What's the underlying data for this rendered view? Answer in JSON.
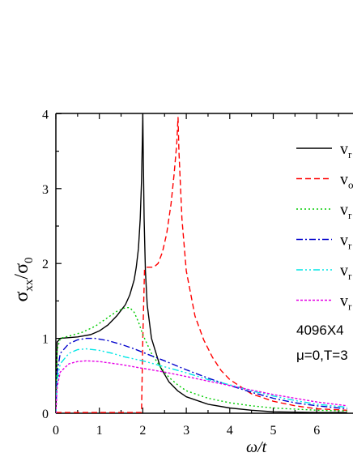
{
  "chart_data": {
    "type": "line",
    "xlabel": "ω/t",
    "ylabel": "σxx/σ0",
    "xlim": [
      0,
      6.7
    ],
    "ylim": [
      0,
      4
    ],
    "x_ticks": [
      "0",
      "1",
      "2",
      "3",
      "4",
      "5",
      "6"
    ],
    "y_ticks": [
      "0",
      "1",
      "2",
      "3",
      "4"
    ],
    "annotations": [
      "4096X4",
      "μ=0,T=3"
    ],
    "series": [
      {
        "name": "v_r",
        "color": "#000000",
        "dash": "solid",
        "points": [
          [
            0,
            0
          ],
          [
            0.03,
            0.95
          ],
          [
            0.1,
            1.0
          ],
          [
            0.5,
            1.02
          ],
          [
            0.8,
            1.05
          ],
          [
            1.0,
            1.1
          ],
          [
            1.2,
            1.18
          ],
          [
            1.4,
            1.3
          ],
          [
            1.6,
            1.45
          ],
          [
            1.7,
            1.58
          ],
          [
            1.8,
            1.78
          ],
          [
            1.85,
            1.95
          ],
          [
            1.9,
            2.2
          ],
          [
            1.94,
            2.6
          ],
          [
            1.97,
            3.1
          ],
          [
            1.99,
            3.7
          ],
          [
            2.0,
            4.0
          ],
          [
            2.01,
            3.5
          ],
          [
            2.03,
            2.6
          ],
          [
            2.06,
            1.9
          ],
          [
            2.1,
            1.45
          ],
          [
            2.2,
            1.0
          ],
          [
            2.4,
            0.62
          ],
          [
            2.6,
            0.42
          ],
          [
            2.8,
            0.3
          ],
          [
            3.0,
            0.22
          ],
          [
            3.5,
            0.12
          ],
          [
            4.0,
            0.07
          ],
          [
            4.5,
            0.04
          ],
          [
            5.0,
            0.02
          ],
          [
            6.0,
            0.01
          ],
          [
            6.7,
            0.01
          ]
        ]
      },
      {
        "name": "v_o",
        "color": "#ff0000",
        "dash": "7,4",
        "points": [
          [
            0,
            0.01
          ],
          [
            1.5,
            0.01
          ],
          [
            1.97,
            0.01
          ],
          [
            2.0,
            1.0
          ],
          [
            2.04,
            1.92
          ],
          [
            2.1,
            1.95
          ],
          [
            2.25,
            1.95
          ],
          [
            2.35,
            2.0
          ],
          [
            2.45,
            2.15
          ],
          [
            2.55,
            2.4
          ],
          [
            2.65,
            2.8
          ],
          [
            2.72,
            3.2
          ],
          [
            2.78,
            3.6
          ],
          [
            2.81,
            3.95
          ],
          [
            2.83,
            3.5
          ],
          [
            2.9,
            2.6
          ],
          [
            3.0,
            1.9
          ],
          [
            3.2,
            1.3
          ],
          [
            3.4,
            0.98
          ],
          [
            3.6,
            0.75
          ],
          [
            3.8,
            0.57
          ],
          [
            4.0,
            0.45
          ],
          [
            4.5,
            0.26
          ],
          [
            5.0,
            0.16
          ],
          [
            5.5,
            0.1
          ],
          [
            6.0,
            0.06
          ],
          [
            6.7,
            0.04
          ]
        ]
      },
      {
        "name": "v_r",
        "color": "#00cc00",
        "dash": "2,3",
        "points": [
          [
            0,
            0
          ],
          [
            0.03,
            0.85
          ],
          [
            0.1,
            1.0
          ],
          [
            0.3,
            1.03
          ],
          [
            0.6,
            1.08
          ],
          [
            0.9,
            1.16
          ],
          [
            1.2,
            1.28
          ],
          [
            1.4,
            1.36
          ],
          [
            1.6,
            1.41
          ],
          [
            1.7,
            1.41
          ],
          [
            1.8,
            1.35
          ],
          [
            1.9,
            1.22
          ],
          [
            2.0,
            1.05
          ],
          [
            2.2,
            0.8
          ],
          [
            2.4,
            0.62
          ],
          [
            2.6,
            0.48
          ],
          [
            2.8,
            0.38
          ],
          [
            3.0,
            0.3
          ],
          [
            3.5,
            0.2
          ],
          [
            4.0,
            0.14
          ],
          [
            4.5,
            0.1
          ],
          [
            5.0,
            0.07
          ],
          [
            6.0,
            0.04
          ],
          [
            6.7,
            0.03
          ]
        ]
      },
      {
        "name": "v_r",
        "color": "#0000cc",
        "dash": "8,3,2,3",
        "points": [
          [
            0,
            0
          ],
          [
            0.03,
            0.55
          ],
          [
            0.1,
            0.8
          ],
          [
            0.3,
            0.93
          ],
          [
            0.5,
            0.98
          ],
          [
            0.7,
            1.0
          ],
          [
            0.9,
            1.0
          ],
          [
            1.2,
            0.97
          ],
          [
            1.5,
            0.92
          ],
          [
            1.8,
            0.86
          ],
          [
            2.1,
            0.79
          ],
          [
            2.5,
            0.7
          ],
          [
            3.0,
            0.58
          ],
          [
            3.5,
            0.47
          ],
          [
            4.0,
            0.37
          ],
          [
            4.5,
            0.28
          ],
          [
            5.0,
            0.2
          ],
          [
            5.5,
            0.14
          ],
          [
            6.0,
            0.1
          ],
          [
            6.7,
            0.06
          ]
        ]
      },
      {
        "name": "v_r",
        "color": "#00e6e6",
        "dash": "8,3,2,3,2,3",
        "points": [
          [
            0,
            0
          ],
          [
            0.03,
            0.45
          ],
          [
            0.1,
            0.66
          ],
          [
            0.3,
            0.8
          ],
          [
            0.5,
            0.85
          ],
          [
            0.7,
            0.86
          ],
          [
            1.0,
            0.84
          ],
          [
            1.3,
            0.8
          ],
          [
            1.6,
            0.75
          ],
          [
            2.0,
            0.7
          ],
          [
            2.5,
            0.62
          ],
          [
            3.0,
            0.54
          ],
          [
            3.5,
            0.45
          ],
          [
            4.0,
            0.38
          ],
          [
            4.5,
            0.3
          ],
          [
            5.0,
            0.23
          ],
          [
            5.5,
            0.17
          ],
          [
            6.0,
            0.12
          ],
          [
            6.7,
            0.08
          ]
        ]
      },
      {
        "name": "v_r",
        "color": "#e600e6",
        "dash": "3,2",
        "points": [
          [
            0,
            0
          ],
          [
            0.03,
            0.35
          ],
          [
            0.1,
            0.55
          ],
          [
            0.3,
            0.66
          ],
          [
            0.5,
            0.69
          ],
          [
            0.7,
            0.7
          ],
          [
            1.0,
            0.69
          ],
          [
            1.5,
            0.65
          ],
          [
            2.0,
            0.6
          ],
          [
            2.5,
            0.55
          ],
          [
            3.0,
            0.49
          ],
          [
            3.5,
            0.43
          ],
          [
            4.0,
            0.37
          ],
          [
            4.5,
            0.31
          ],
          [
            5.0,
            0.25
          ],
          [
            5.5,
            0.2
          ],
          [
            6.0,
            0.15
          ],
          [
            6.7,
            0.1
          ]
        ]
      }
    ]
  }
}
